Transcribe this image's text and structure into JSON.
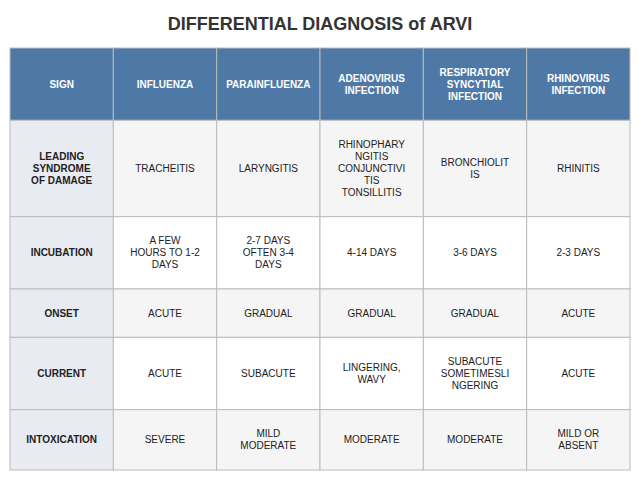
{
  "chart_data": {
    "type": "table",
    "title": "DIFFERENTIAL DIAGNOSIS of ARVI",
    "columns": [
      "SIGN",
      "INFLUENZA",
      "PARAINFLUENZA",
      "ADENOVIRUS\nINFECTION",
      "RESPIRATORY\nSYNCYTIAL\nINFECTION",
      "RHINOVIRUS\nINFECTION"
    ],
    "rows": [
      [
        "LEADING\nSYNDROME\nOF DAMAGE",
        "TRACHEITIS",
        "LARYNGITIS",
        "RHINOPHARY\nNGITIS\nCONJUNCTIVI\nTIS\nTONSILLITIS",
        "BRONCHIOLIT\nIS",
        "RHINITIS"
      ],
      [
        "INCUBATION",
        "A FEW\nHOURS TO 1-2\nDAYS",
        "2-7 DAYS\nOFTEN 3-4\nDAYS",
        "4-14 DAYS",
        "3-6 DAYS",
        "2-3 DAYS"
      ],
      [
        "ONSET",
        "ACUTE",
        "GRADUAL",
        "GRADUAL",
        "GRADUAL",
        "ACUTE"
      ],
      [
        "CURRENT",
        "ACUTE",
        "SUBACUTE",
        "LINGERING,\nWAVY",
        "SUBACUTE\nSOMETIMESLI\nNGERING",
        "ACUTE"
      ],
      [
        "INTOXICATION",
        "SEVERE",
        "MILD\nMODERATE",
        "MODERATE",
        "MODERATE",
        "MILD OR\nABSENT"
      ]
    ]
  }
}
